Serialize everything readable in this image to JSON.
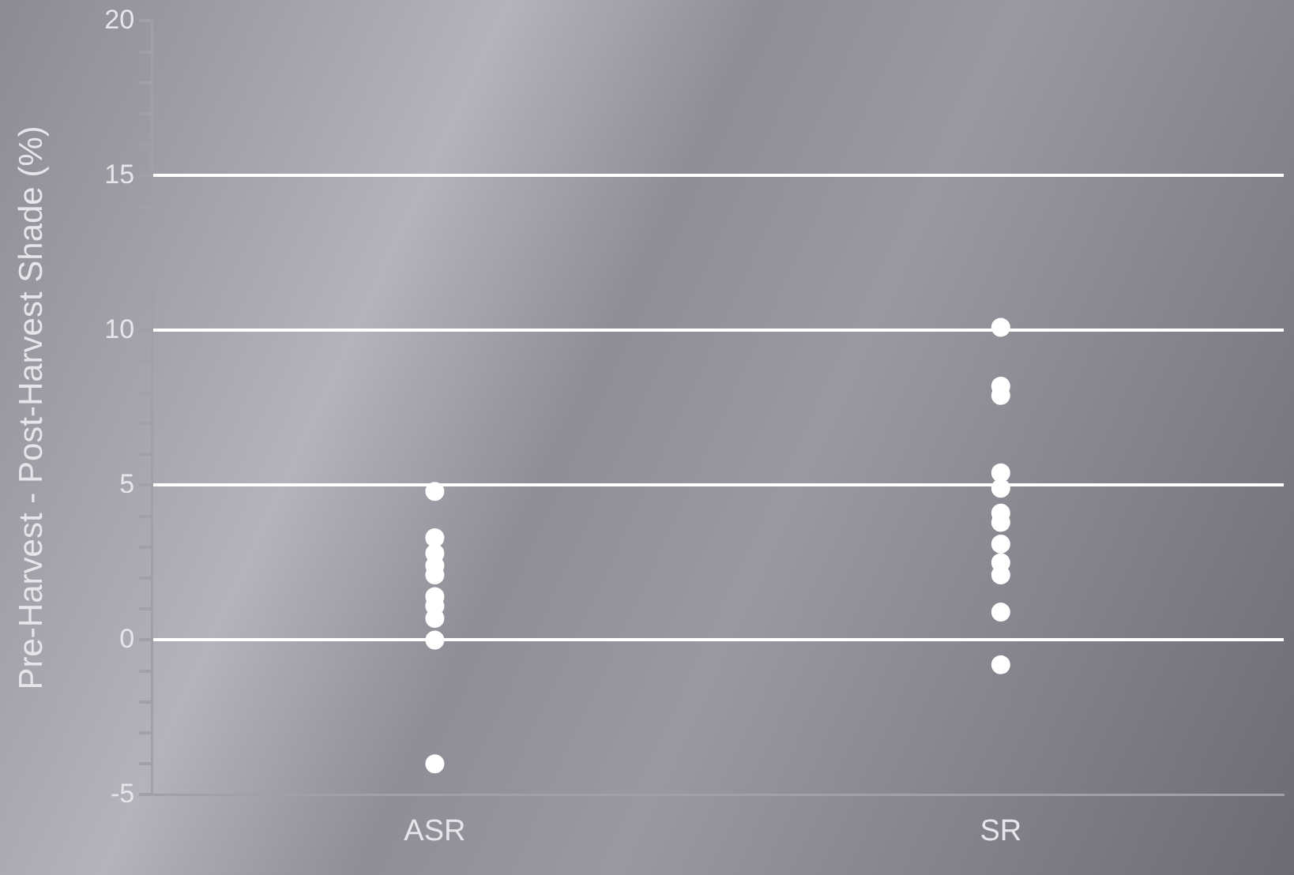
{
  "chart_data": {
    "type": "scatter",
    "ylabel": "Pre-Harvest - Post-Harvest Shade (%)",
    "categories": [
      "ASR",
      "SR"
    ],
    "series": [
      {
        "color": "#ffffff",
        "x": [
          "ASR",
          "ASR",
          "ASR",
          "ASR",
          "ASR",
          "ASR",
          "ASR",
          "ASR",
          "ASR",
          "ASR",
          "SR",
          "SR",
          "SR",
          "SR",
          "SR",
          "SR",
          "SR",
          "SR",
          "SR",
          "SR",
          "SR",
          "SR"
        ],
        "values": [
          4.8,
          3.3,
          2.8,
          2.4,
          2.1,
          1.4,
          1.1,
          0.7,
          0.0,
          -4.0,
          10.1,
          8.2,
          7.9,
          5.4,
          4.9,
          4.1,
          3.8,
          3.1,
          2.5,
          2.1,
          0.9,
          -0.8
        ]
      }
    ],
    "ylim": [
      -5,
      20
    ],
    "yticks": [
      -5,
      {
        "value": -4,
        "label": null
      },
      {
        "value": -3,
        "label": null
      },
      {
        "value": -2,
        "label": null
      },
      {
        "value": -1,
        "label": null
      },
      0,
      {
        "value": 1,
        "label": null
      },
      {
        "value": 2,
        "label": null
      },
      {
        "value": 3,
        "label": null
      },
      {
        "value": 4,
        "label": null
      },
      5,
      {
        "value": 6,
        "label": null
      },
      {
        "value": 7,
        "label": null
      },
      {
        "value": 8,
        "label": null
      },
      {
        "value": 9,
        "label": null
      },
      10,
      {
        "value": 11,
        "label": null
      },
      {
        "value": 12,
        "label": null
      },
      {
        "value": 13,
        "label": null
      },
      {
        "value": 14,
        "label": null
      },
      15,
      {
        "value": 16,
        "label": null
      },
      {
        "value": 17,
        "label": null
      },
      {
        "value": 18,
        "label": null
      },
      {
        "value": 19,
        "label": null
      },
      20
    ],
    "grid": "y",
    "legend": false,
    "marker": "circle"
  }
}
